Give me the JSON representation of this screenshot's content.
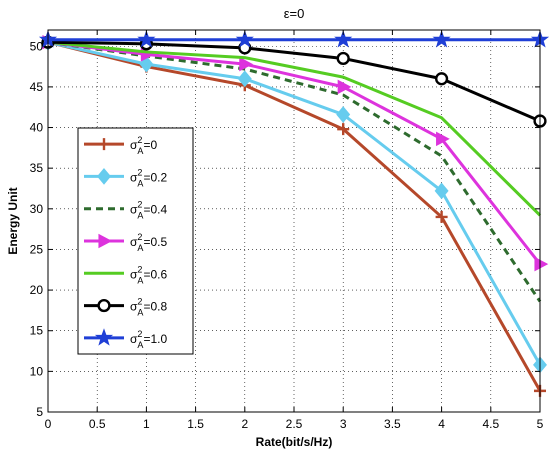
{
  "chart_data": {
    "type": "line",
    "title": "ε=0",
    "xlabel": "Rate(bit/s/Hz)",
    "ylabel": "Energy Unit",
    "xlim": [
      0,
      5
    ],
    "ylim": [
      5,
      52
    ],
    "x_ticks": [
      "0",
      "0.5",
      "1",
      "1.5",
      "2",
      "2.5",
      "3",
      "3.5",
      "4",
      "4.5",
      "5"
    ],
    "y_ticks": [
      "5",
      "10",
      "15",
      "20",
      "25",
      "30",
      "35",
      "40",
      "45",
      "50"
    ],
    "grid": true,
    "legend_position": "center-left",
    "x": [
      0,
      1,
      2,
      3,
      4,
      5
    ],
    "series": [
      {
        "name": "σ²_A=0",
        "label_base": "σ",
        "label_sup": "2",
        "label_sub": "A",
        "label_tail": "=0",
        "color": "#b5482a",
        "marker": "plus",
        "dashed": false,
        "values": [
          50.5,
          47.5,
          45.2,
          39.8,
          29.0,
          7.6
        ]
      },
      {
        "name": "σ²_A=0.2",
        "label_base": "σ",
        "label_sup": "2",
        "label_sub": "A",
        "label_tail": "=0.2",
        "color": "#66ccee",
        "marker": "diamond",
        "dashed": false,
        "values": [
          50.5,
          47.8,
          46.0,
          41.6,
          32.2,
          10.8
        ]
      },
      {
        "name": "σ²_A=0.4",
        "label_base": "σ",
        "label_sup": "2",
        "label_sub": "A",
        "label_tail": "=0.4",
        "color": "#2e6b2e",
        "marker": "none",
        "dashed": true,
        "values": [
          50.5,
          48.8,
          47.2,
          44.0,
          36.5,
          18.6
        ]
      },
      {
        "name": "σ²_A=0.5",
        "label_base": "σ",
        "label_sup": "2",
        "label_sub": "A",
        "label_tail": "=0.5",
        "color": "#dd33dd",
        "marker": "triangle",
        "dashed": false,
        "values": [
          50.5,
          49.0,
          47.8,
          45.0,
          38.6,
          23.2
        ]
      },
      {
        "name": "σ²_A=0.6",
        "label_base": "σ",
        "label_sup": "2",
        "label_sub": "A",
        "label_tail": "=0.6",
        "color": "#55cc22",
        "marker": "none",
        "dashed": false,
        "values": [
          50.5,
          49.3,
          48.6,
          46.2,
          41.2,
          29.2
        ]
      },
      {
        "name": "σ²_A=0.8",
        "label_base": "σ",
        "label_sup": "2",
        "label_sub": "A",
        "label_tail": "=0.8",
        "color": "#000000",
        "marker": "circle",
        "dashed": false,
        "values": [
          50.5,
          50.3,
          49.8,
          48.5,
          46.0,
          40.8
        ]
      },
      {
        "name": "σ²_A=1.0",
        "label_base": "σ",
        "label_sup": "2",
        "label_sub": "A",
        "label_tail": "=1.0",
        "color": "#1f3fd6",
        "marker": "star",
        "dashed": false,
        "values": [
          50.8,
          50.8,
          50.8,
          50.8,
          50.8,
          50.8
        ]
      }
    ]
  }
}
